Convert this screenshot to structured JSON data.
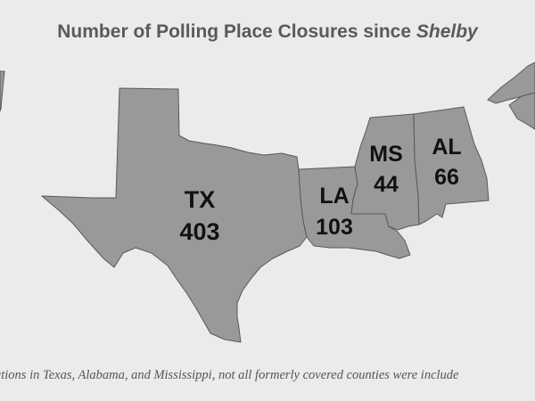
{
  "title": {
    "text": "Number of Polling Place Closures since ",
    "emphasis": "Shelby"
  },
  "states": [
    {
      "abbr": "TX",
      "closures": "403"
    },
    {
      "abbr": "LA",
      "closures": "103"
    },
    {
      "abbr": "MS",
      "closures": "44"
    },
    {
      "abbr": "AL",
      "closures": "66"
    }
  ],
  "footnote": "ations in Texas, Alabama, and Mississippi, not all formerly covered counties were include",
  "colors": {
    "background": "#ebebeb",
    "state_fill": "#999999",
    "state_border": "#595959",
    "title": "#5a5a5a",
    "label": "#111111"
  }
}
